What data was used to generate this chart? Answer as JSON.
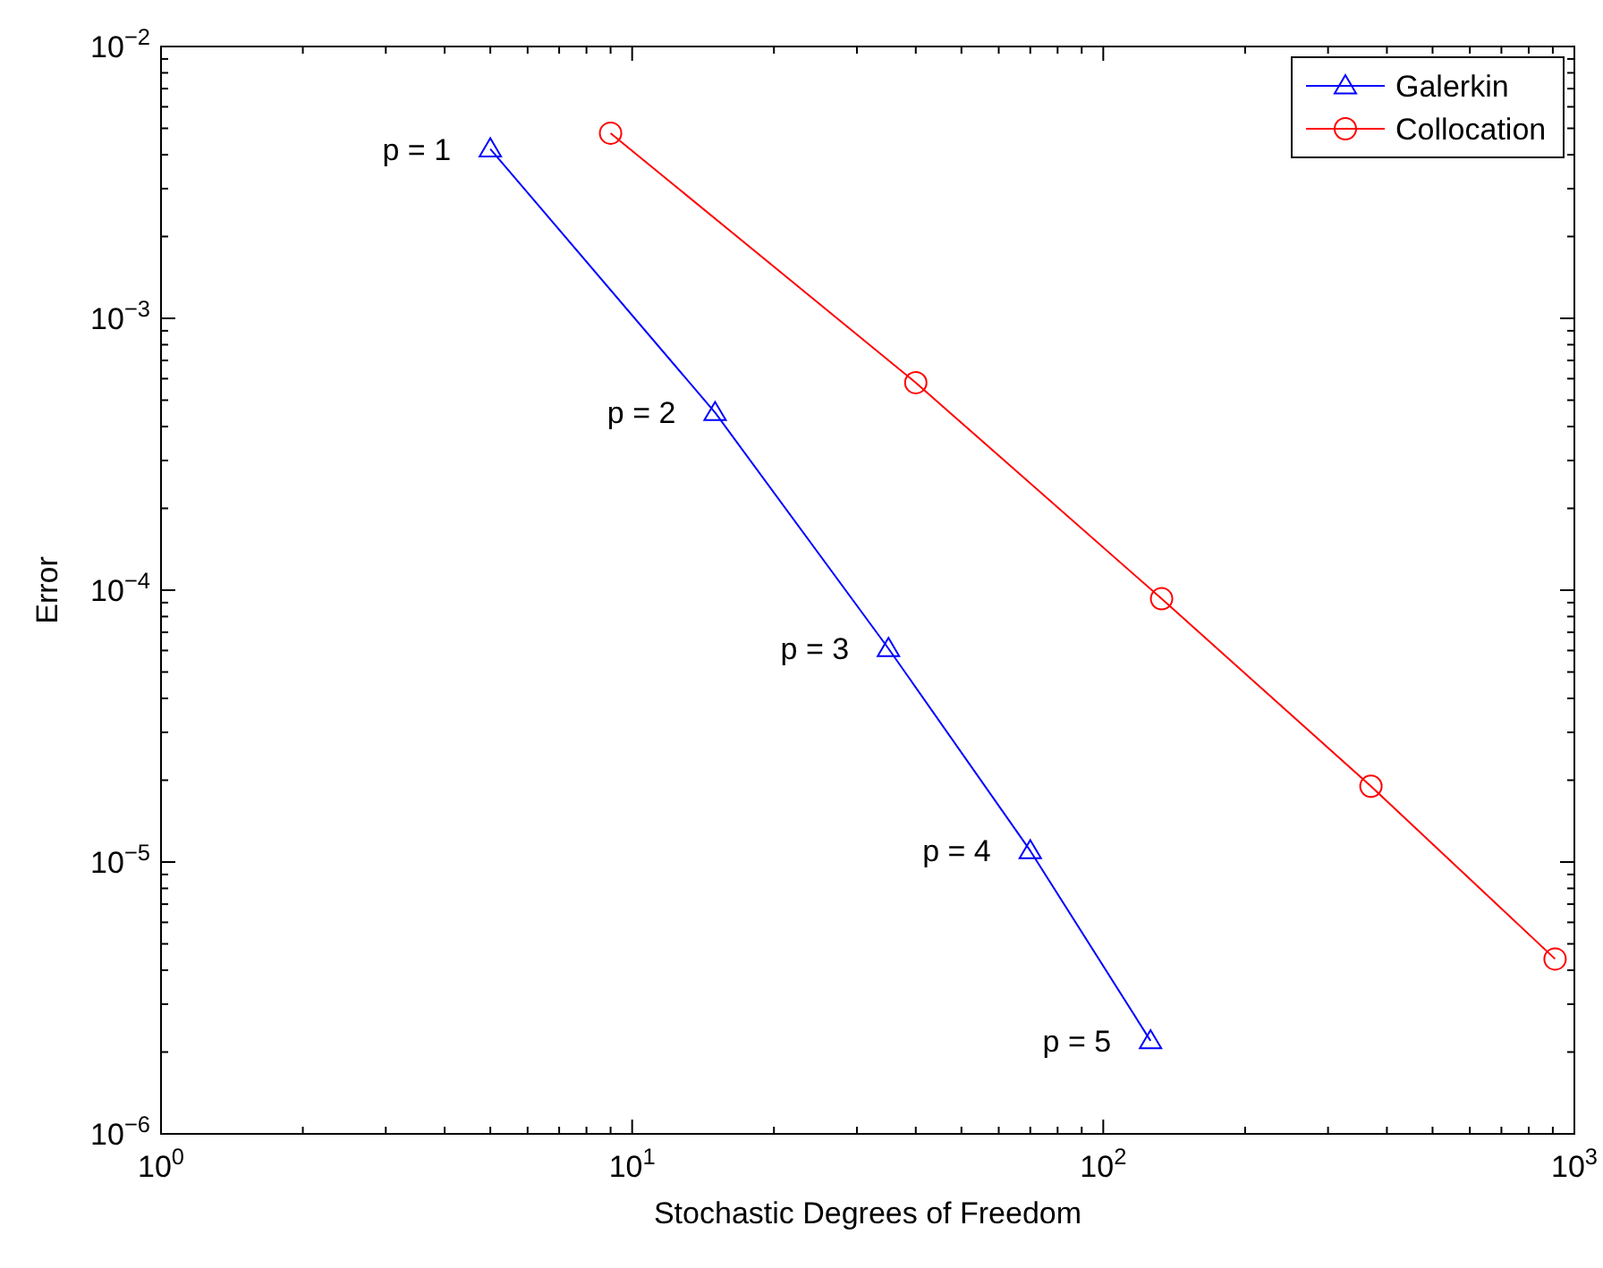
{
  "chart_data": {
    "type": "line",
    "xlabel": "Stochastic Degrees of Freedom",
    "ylabel": "Error",
    "log": "xy",
    "grid": false,
    "legend": "top right",
    "line_style": "solid",
    "xlim": [
      1,
      1000
    ],
    "xticks": [
      {
        "value": 1,
        "label": "10$^{0}$"
      },
      {
        "value": 10,
        "label": "10$^{1}$"
      },
      {
        "value": 100,
        "label": "10$^{2}$"
      },
      {
        "value": 1000,
        "label": "10$^{3}$"
      }
    ],
    "ylim": [
      1e-06,
      0.01
    ],
    "yticks": [
      {
        "value": 1e-06,
        "label": "10$^{−6}$"
      },
      {
        "value": 1e-05,
        "label": "10$^{−5}$"
      },
      {
        "value": 0.0001,
        "label": "10$^{−4}$"
      },
      {
        "value": 0.001,
        "label": "10$^{−3}$"
      },
      {
        "value": 0.01,
        "label": "10$^{−2}$"
      }
    ],
    "series": [
      {
        "name": "Galerkin",
        "color": "#0000ff",
        "marker": "triangle",
        "x": [
          5,
          15,
          35,
          70,
          126
        ],
        "values": [
          0.0042,
          0.00045,
          6.1e-05,
          1.1e-05,
          2.2e-06
        ]
      },
      {
        "name": "Collocation",
        "color": "#ff0000",
        "marker": "circle",
        "x": [
          9,
          40,
          133,
          370,
          910
        ],
        "values": [
          0.0048,
          0.00058,
          9.3e-05,
          1.9e-05,
          4.4e-06
        ]
      }
    ],
    "annotations": [
      {
        "text": "p = 1",
        "x": 5,
        "y": 0.0042
      },
      {
        "text": "p = 2",
        "x": 15,
        "y": 0.00045
      },
      {
        "text": "p = 3",
        "x": 35,
        "y": 6.1e-05
      },
      {
        "text": "p = 4",
        "x": 70,
        "y": 1.1e-05
      },
      {
        "text": "p = 5",
        "x": 126,
        "y": 2.2e-06
      }
    ]
  }
}
